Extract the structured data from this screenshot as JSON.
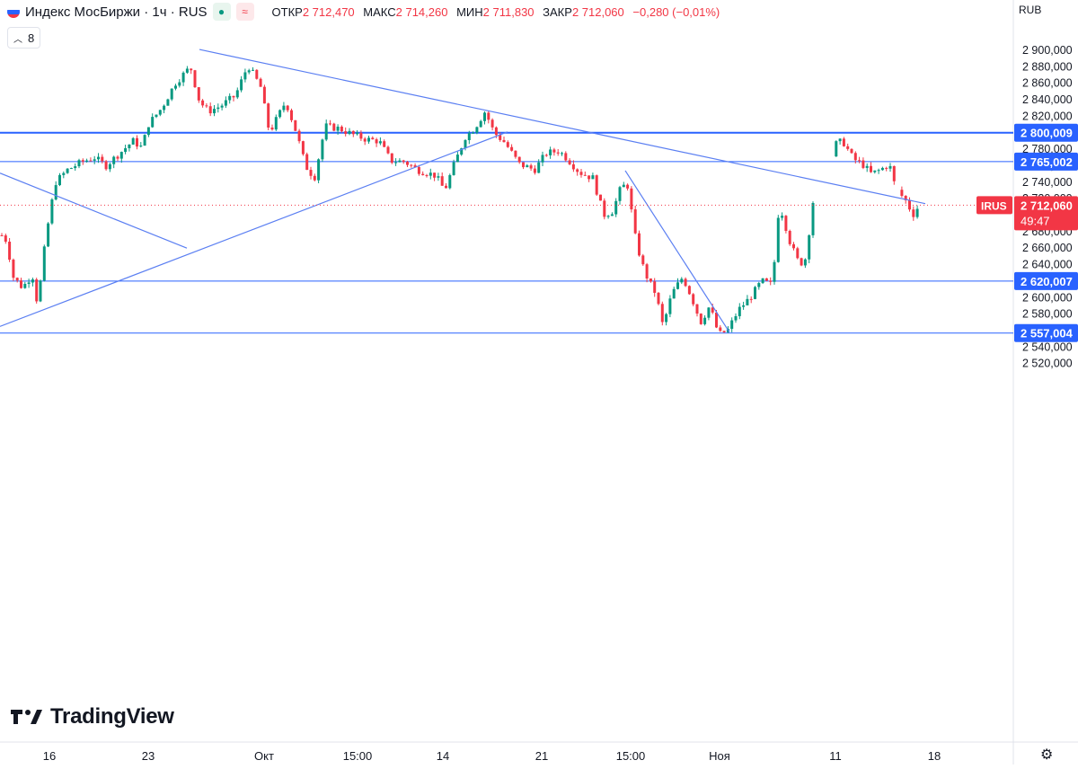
{
  "header": {
    "symbol": "Индекс МосБиржи · 1ч · RUS",
    "open_label": "ОТКР",
    "open_value": "2 712,470",
    "high_label": "МАКС",
    "high_value": "2 714,260",
    "low_label": "МИН",
    "low_value": "2 711,830",
    "close_label": "ЗАКР",
    "close_value": "2 712,060",
    "change": "−0,280 (−0,01%)",
    "indicator_count": "8",
    "pill_green_icon": "dot-icon",
    "pill_red_icon": "approx-icon"
  },
  "currency": "RUB",
  "brand": "TradingView",
  "colors": {
    "up": "#089981",
    "down": "#f23645",
    "hline": "#2962ff",
    "trend": "#5b7ff2",
    "axis_text": "#131722"
  },
  "chart_data": {
    "type": "candlestick",
    "title": "Индекс МосБиржи · 1ч · RUS",
    "y_ticks": [
      2520,
      2540,
      2560,
      2580,
      2600,
      2620,
      2640,
      2660,
      2680,
      2700,
      2720,
      2740,
      2760,
      2780,
      2800,
      2820,
      2840,
      2860,
      2880,
      2900
    ],
    "ylim": [
      2512,
      2910
    ],
    "x_ticks": [
      "16",
      "23",
      "Окт",
      "15:00",
      "14",
      "21",
      "15:00",
      "Ноя",
      "11",
      "18"
    ],
    "grid": false,
    "price_path": [
      [
        0,
        2678
      ],
      [
        8,
        2668
      ],
      [
        14,
        2626
      ],
      [
        25,
        2612
      ],
      [
        36,
        2628
      ],
      [
        42,
        2590
      ],
      [
        48,
        2648
      ],
      [
        55,
        2700
      ],
      [
        62,
        2740
      ],
      [
        75,
        2755
      ],
      [
        92,
        2765
      ],
      [
        105,
        2770
      ],
      [
        118,
        2760
      ],
      [
        130,
        2772
      ],
      [
        148,
        2790
      ],
      [
        158,
        2782
      ],
      [
        165,
        2810
      ],
      [
        180,
        2830
      ],
      [
        195,
        2860
      ],
      [
        212,
        2880
      ],
      [
        222,
        2838
      ],
      [
        232,
        2826
      ],
      [
        245,
        2832
      ],
      [
        262,
        2845
      ],
      [
        276,
        2882
      ],
      [
        290,
        2856
      ],
      [
        300,
        2800
      ],
      [
        318,
        2838
      ],
      [
        330,
        2800
      ],
      [
        340,
        2760
      ],
      [
        350,
        2745
      ],
      [
        362,
        2808
      ],
      [
        378,
        2805
      ],
      [
        392,
        2798
      ],
      [
        408,
        2792
      ],
      [
        422,
        2790
      ],
      [
        435,
        2766
      ],
      [
        450,
        2765
      ],
      [
        465,
        2755
      ],
      [
        485,
        2748
      ],
      [
        495,
        2730
      ],
      [
        505,
        2760
      ],
      [
        518,
        2795
      ],
      [
        528,
        2805
      ],
      [
        540,
        2826
      ],
      [
        550,
        2800
      ],
      [
        562,
        2788
      ],
      [
        578,
        2762
      ],
      [
        595,
        2755
      ],
      [
        608,
        2775
      ],
      [
        622,
        2778
      ],
      [
        632,
        2768
      ],
      [
        645,
        2752
      ],
      [
        660,
        2745
      ],
      [
        672,
        2700
      ],
      [
        682,
        2705
      ],
      [
        690,
        2730
      ],
      [
        698,
        2740
      ],
      [
        708,
        2668
      ],
      [
        715,
        2640
      ],
      [
        722,
        2620
      ],
      [
        730,
        2605
      ],
      [
        738,
        2565
      ],
      [
        748,
        2605
      ],
      [
        760,
        2625
      ],
      [
        770,
        2600
      ],
      [
        780,
        2570
      ],
      [
        790,
        2590
      ],
      [
        800,
        2555
      ],
      [
        810,
        2560
      ],
      [
        822,
        2585
      ],
      [
        835,
        2600
      ],
      [
        848,
        2620
      ],
      [
        860,
        2615
      ],
      [
        866,
        2700
      ],
      [
        870,
        2705
      ],
      [
        880,
        2665
      ],
      [
        890,
        2640
      ],
      [
        897,
        2648
      ],
      [
        903,
        2700
      ],
      [
        908,
        2740
      ],
      [
        915,
        2722
      ],
      [
        922,
        2730
      ],
      [
        928,
        2785
      ],
      [
        938,
        2790
      ],
      [
        950,
        2768
      ],
      [
        960,
        2762
      ],
      [
        970,
        2750
      ],
      [
        980,
        2755
      ],
      [
        990,
        2762
      ],
      [
        995,
        2740
      ],
      [
        1002,
        2726
      ],
      [
        1010,
        2715
      ],
      [
        1016,
        2700
      ],
      [
        1022,
        2710
      ]
    ],
    "horizontal_levels": [
      2800.009,
      2765.002,
      2620.007,
      2557.004
    ],
    "level_labels": [
      "2 800,009",
      "2 765,002",
      "2 620,007",
      "2 557,004"
    ],
    "last_price": 2712.06,
    "last_price_label": "2 712,060",
    "last_tag_symbol": "IRUS",
    "countdown": "49:47",
    "trendlines": [
      [
        [
          222,
          2901
        ],
        [
          1030,
          2714
        ]
      ],
      [
        [
          0,
          2565
        ],
        [
          565,
          2801
        ]
      ],
      [
        [
          0,
          2751
        ],
        [
          208,
          2660
        ]
      ],
      [
        [
          696,
          2754
        ],
        [
          812,
          2558
        ]
      ]
    ]
  }
}
